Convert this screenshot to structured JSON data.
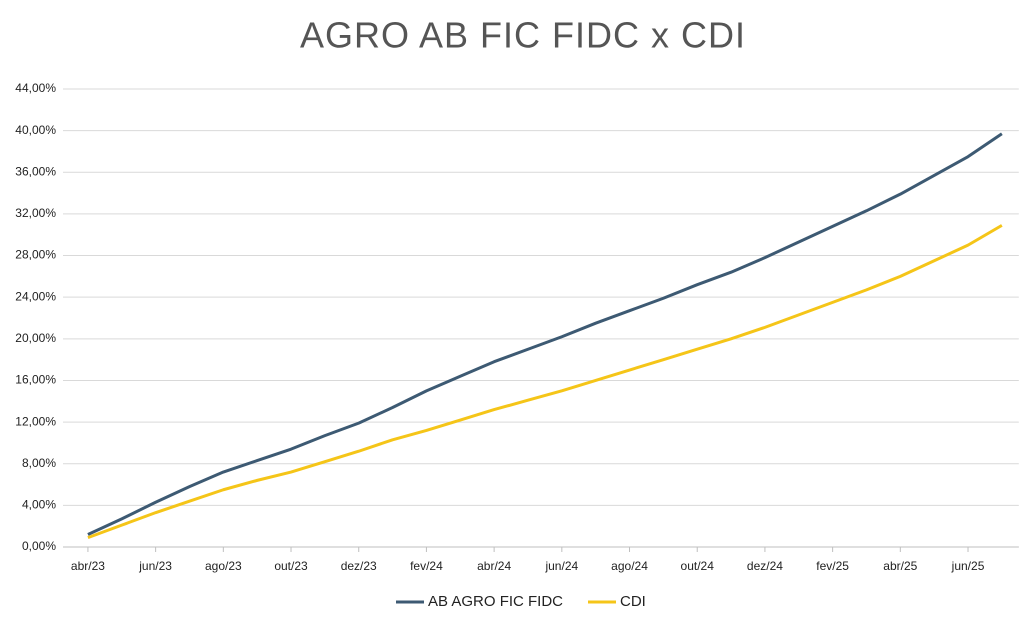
{
  "chart_data": {
    "type": "line",
    "title": "AGRO AB FIC FIDC x CDI",
    "categories": [
      "abr/23",
      null,
      "jun/23",
      null,
      "ago/23",
      null,
      "out/23",
      null,
      "dez/23",
      null,
      "fev/24",
      null,
      "abr/24",
      null,
      "jun/24",
      null,
      "ago/24",
      null,
      "out/24",
      null,
      "dez/24",
      null,
      "fev/25",
      null,
      "abr/25",
      null,
      "jun/25",
      null
    ],
    "series": [
      {
        "name": "AB AGRO FIC FIDC",
        "color": "#3d5a73",
        "values": [
          1.2,
          2.7,
          4.3,
          5.8,
          7.2,
          8.3,
          9.4,
          10.7,
          11.9,
          13.4,
          15.0,
          16.4,
          17.8,
          19.0,
          20.2,
          21.5,
          22.7,
          23.9,
          25.2,
          26.4,
          27.8,
          29.3,
          30.8,
          32.3,
          33.9,
          35.7,
          37.5,
          39.7
        ]
      },
      {
        "name": "CDI",
        "color": "#f5c518",
        "values": [
          0.9,
          2.1,
          3.3,
          4.4,
          5.5,
          6.4,
          7.2,
          8.2,
          9.2,
          10.3,
          11.2,
          12.2,
          13.2,
          14.1,
          15.0,
          16.0,
          17.0,
          18.0,
          19.0,
          20.0,
          21.1,
          22.3,
          23.5,
          24.7,
          26.0,
          27.5,
          29.0,
          30.9
        ]
      }
    ],
    "ylim": [
      0,
      44
    ],
    "yticks": [
      {
        "value": 0,
        "label": "0,00%"
      },
      {
        "value": 4,
        "label": "4,00%"
      },
      {
        "value": 8,
        "label": "8,00%"
      },
      {
        "value": 12,
        "label": "12,00%"
      },
      {
        "value": 16,
        "label": "16,00%"
      },
      {
        "value": 20,
        "label": "20,00%"
      },
      {
        "value": 24,
        "label": "24,00%"
      },
      {
        "value": 28,
        "label": "28,00%"
      },
      {
        "value": 32,
        "label": "32,00%"
      },
      {
        "value": 36,
        "label": "36,00%"
      },
      {
        "value": 40,
        "label": "40,00%"
      },
      {
        "value": 44,
        "label": "44,00%"
      }
    ],
    "grid": true,
    "legend": "bottom"
  }
}
